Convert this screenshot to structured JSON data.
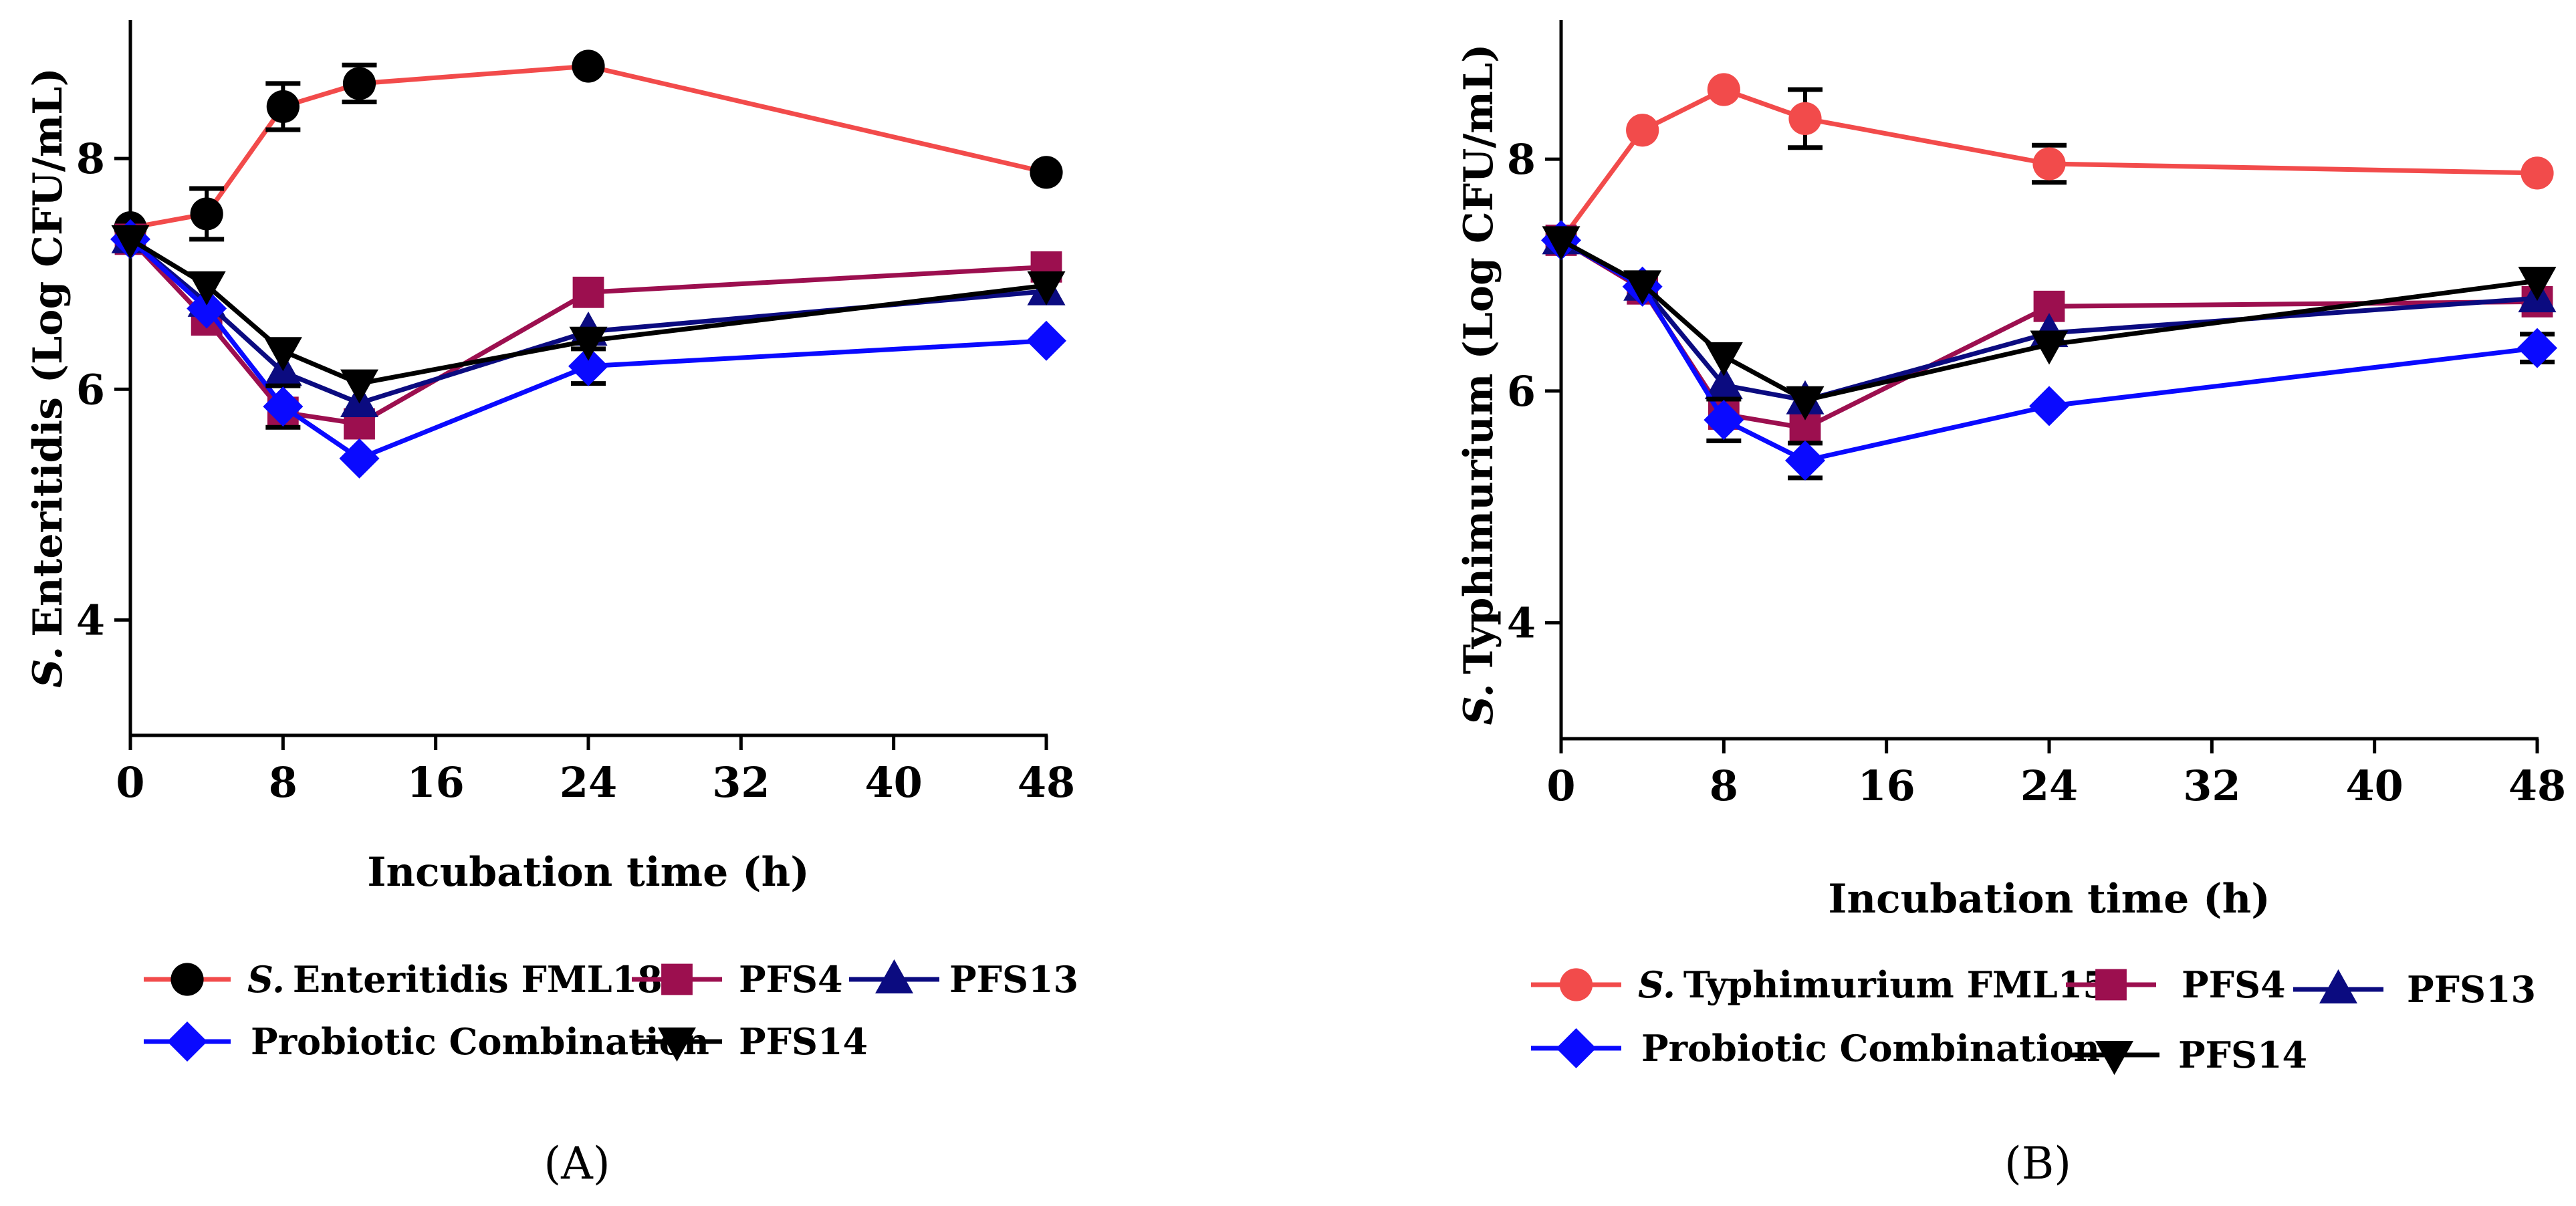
{
  "chart_data": [
    {
      "type": "line",
      "panel_label": "(A)",
      "panel_letter": "A",
      "xlabel": "Incubation time (h)",
      "ylabel_italic": "S.",
      "ylabel_rest": "Enteritidis (Log CFU/mL)",
      "xlim": [
        0,
        48
      ],
      "ylim": [
        3,
        9.2
      ],
      "xticks": [
        0,
        8,
        16,
        24,
        32,
        40,
        48
      ],
      "yticks": [
        4,
        6,
        8
      ],
      "x": [
        0,
        4,
        8,
        12,
        24,
        48
      ],
      "series": [
        {
          "name_italic": "S.",
          "name_rest": "Enteritidis FML18",
          "line_color": "#f24b4b",
          "marker": "circle",
          "marker_color": "#000000",
          "values": [
            7.4,
            7.52,
            8.45,
            8.65,
            8.8,
            7.88
          ],
          "errors": [
            0,
            0.22,
            0.2,
            0.16,
            0,
            0
          ]
        },
        {
          "name": "PFS4",
          "line_color": "#9c0f4f",
          "marker": "square",
          "marker_color": "#9c0f4f",
          "values": [
            7.3,
            6.6,
            5.8,
            5.7,
            6.84,
            7.06
          ],
          "errors": [
            0,
            0,
            0,
            0,
            0,
            0
          ]
        },
        {
          "name": "PFS13",
          "line_color": "#0b0b80",
          "marker": "triangle-up",
          "marker_color": "#0b0b80",
          "values": [
            7.3,
            6.75,
            6.15,
            5.88,
            6.5,
            6.85
          ],
          "errors": [
            0,
            0,
            0,
            0,
            0,
            0
          ]
        },
        {
          "name": "Probiotic Combination",
          "line_color": "#0a0aff",
          "marker": "diamond",
          "marker_color": "#0a0aff",
          "values": [
            7.3,
            6.7,
            5.85,
            5.4,
            6.2,
            6.42
          ],
          "errors": [
            0,
            0,
            0.18,
            0,
            0.15,
            0
          ]
        },
        {
          "name": "PFS14",
          "line_color": "#000000",
          "marker": "triangle-down",
          "marker_color": "#000000",
          "values": [
            7.3,
            6.9,
            6.33,
            6.05,
            6.42,
            6.9
          ],
          "errors": [
            0,
            0,
            0,
            0,
            0,
            0
          ]
        }
      ]
    },
    {
      "type": "line",
      "panel_label": "(B)",
      "panel_letter": "B",
      "xlabel": "Incubation time (h)",
      "ylabel_italic": "S.",
      "ylabel_rest": "Typhimurium (Log CFU/mL)",
      "xlim": [
        0,
        48
      ],
      "ylim": [
        3,
        9.2
      ],
      "xticks": [
        0,
        8,
        16,
        24,
        32,
        40,
        48
      ],
      "yticks": [
        4,
        6,
        8
      ],
      "x": [
        0,
        4,
        8,
        12,
        24,
        48
      ],
      "series": [
        {
          "name_italic": "S.",
          "name_rest": "Typhimurium FML15",
          "line_color": "#f24b4b",
          "marker": "circle",
          "marker_color": "#f24b4b",
          "values": [
            7.3,
            8.25,
            8.6,
            8.35,
            7.96,
            7.88
          ],
          "errors": [
            0,
            0,
            0,
            0.25,
            0.16,
            0
          ]
        },
        {
          "name": "PFS4",
          "line_color": "#9c0f4f",
          "marker": "square",
          "marker_color": "#9c0f4f",
          "values": [
            7.3,
            6.88,
            5.8,
            5.68,
            6.73,
            6.77
          ],
          "errors": [
            0,
            0,
            0,
            0,
            0,
            0
          ]
        },
        {
          "name": "PFS13",
          "line_color": "#0b0b80",
          "marker": "triangle-up",
          "marker_color": "#0b0b80",
          "values": [
            7.3,
            6.9,
            6.05,
            5.92,
            6.5,
            6.8
          ],
          "errors": [
            0,
            0,
            0,
            0,
            0,
            0
          ]
        },
        {
          "name": "Probiotic Combination",
          "line_color": "#0a0aff",
          "marker": "diamond",
          "marker_color": "#0a0aff",
          "values": [
            7.3,
            6.9,
            5.75,
            5.4,
            5.87,
            6.37
          ],
          "errors": [
            0,
            0,
            0.18,
            0.15,
            0,
            0.12
          ]
        },
        {
          "name": "PFS14",
          "line_color": "#000000",
          "marker": "triangle-down",
          "marker_color": "#000000",
          "values": [
            7.3,
            6.92,
            6.3,
            5.92,
            6.4,
            6.95
          ],
          "errors": [
            0,
            0,
            0,
            0,
            0,
            0
          ]
        }
      ]
    }
  ]
}
